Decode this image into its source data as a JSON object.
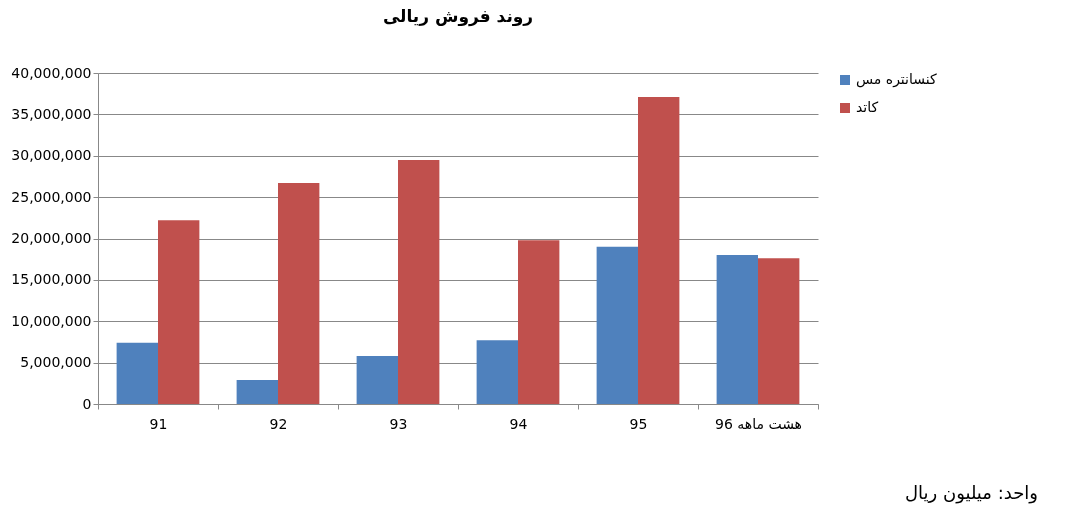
{
  "chart_data": {
    "type": "bar",
    "title": "روند فروش ریالی",
    "categories": [
      "91",
      "92",
      "93",
      "94",
      "95",
      "هشت ماهه 96"
    ],
    "series": [
      {
        "name": "کنسانتره مس",
        "color": "#4f81bd",
        "values": [
          7400000,
          2900000,
          5800000,
          7700000,
          19000000,
          18000000
        ]
      },
      {
        "name": "کاتد",
        "color": "#c0504d",
        "values": [
          22200000,
          26700000,
          29500000,
          19800000,
          37100000,
          17600000
        ]
      }
    ],
    "ylim": [
      0,
      40000000
    ],
    "yticks": [
      0,
      {
        "value": 5000000,
        "label": "5,000,000"
      },
      {
        "value": 10000000,
        "label": "10,000,000"
      },
      {
        "value": 15000000,
        "label": "15,000,000"
      },
      {
        "value": 20000000,
        "label": "20,000,000"
      },
      {
        "value": 25000000,
        "label": "25,000,000"
      },
      {
        "value": 30000000,
        "label": "30,000,000"
      },
      {
        "value": 35000000,
        "label": "35,000,000"
      },
      {
        "value": 40000000,
        "label": "40,000,000"
      }
    ],
    "grid": "y",
    "legend": "right",
    "annotations": [
      "واحد: میلیون ریال"
    ]
  }
}
